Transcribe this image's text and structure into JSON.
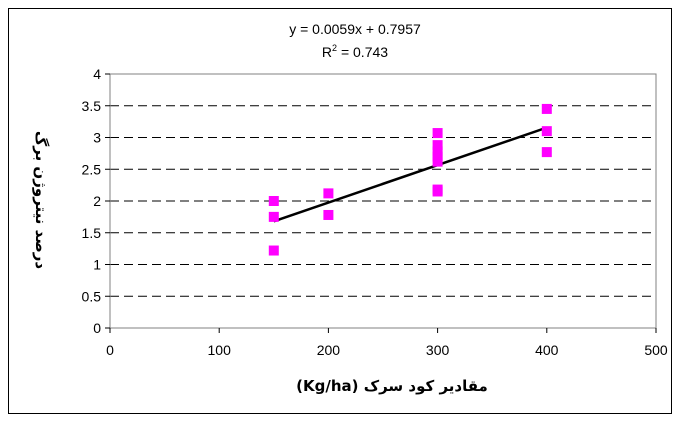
{
  "chart_data": {
    "type": "scatter",
    "xlabel": "مقادیر کود سرک (Kg/ha)",
    "ylabel": "درصد نیتروژن برگ",
    "xlim": [
      0,
      500
    ],
    "ylim": [
      0,
      4
    ],
    "x_ticks": [
      "0",
      "100",
      "200",
      "300",
      "400",
      "500"
    ],
    "y_ticks": [
      "0",
      "0.5",
      "1",
      "1.5",
      "2",
      "2.5",
      "3",
      "3.5",
      "4"
    ],
    "grid": "horizontal dashed",
    "points": [
      {
        "x": 150,
        "y": 1.22
      },
      {
        "x": 150,
        "y": 1.75
      },
      {
        "x": 150,
        "y": 2.0
      },
      {
        "x": 200,
        "y": 1.78
      },
      {
        "x": 200,
        "y": 2.12
      },
      {
        "x": 300,
        "y": 2.15
      },
      {
        "x": 300,
        "y": 2.18
      },
      {
        "x": 300,
        "y": 2.62
      },
      {
        "x": 300,
        "y": 2.7
      },
      {
        "x": 300,
        "y": 2.78
      },
      {
        "x": 300,
        "y": 2.88
      },
      {
        "x": 300,
        "y": 3.07
      },
      {
        "x": 400,
        "y": 2.77
      },
      {
        "x": 400,
        "y": 3.1
      },
      {
        "x": 400,
        "y": 3.45
      }
    ],
    "trendline": {
      "slope": 0.0059,
      "intercept": 0.7957,
      "x_range": [
        150,
        400
      ],
      "equation": "y = 0.0059x + 0.7957",
      "r2_prefix": "R",
      "r2_sup": "2",
      "r2_value": " = 0.743"
    },
    "colors": {
      "points": "#FF00FF",
      "trendline": "#000000",
      "grid": "#000000"
    }
  }
}
